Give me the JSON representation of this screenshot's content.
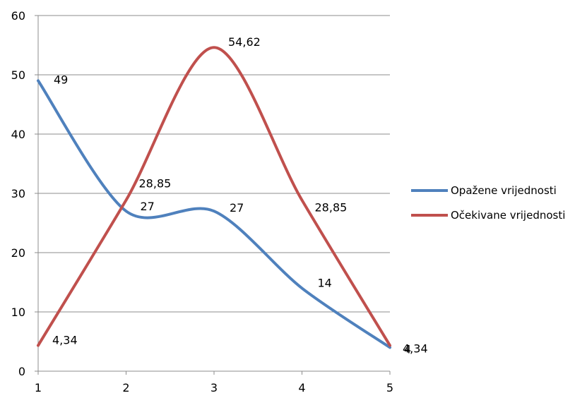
{
  "chart_data": {
    "type": "line",
    "smooth": true,
    "x": [
      1,
      2,
      3,
      4,
      5
    ],
    "ylim": [
      0,
      60
    ],
    "yticks": [
      0,
      10,
      20,
      30,
      40,
      50,
      60
    ],
    "ytick_labels": [
      "0",
      "10",
      "20",
      "30",
      "40",
      "50",
      "60"
    ],
    "xtick_labels": [
      "1",
      "2",
      "3",
      "4",
      "5"
    ],
    "grid": "horizontal",
    "legend_position": "right",
    "series": [
      {
        "name": "Opažene vrijednosti",
        "color": "#4f81bd",
        "values": [
          49,
          27,
          27,
          14,
          4
        ],
        "labels": [
          "49",
          "27",
          "27",
          "14",
          "4"
        ]
      },
      {
        "name": "Očekivane vrijednosti",
        "color": "#c0504d",
        "values": [
          4.34,
          28.85,
          54.62,
          28.85,
          4.34
        ],
        "labels": [
          "4,34",
          "28,85",
          "54,62",
          "28,85",
          "4,34"
        ]
      }
    ]
  }
}
